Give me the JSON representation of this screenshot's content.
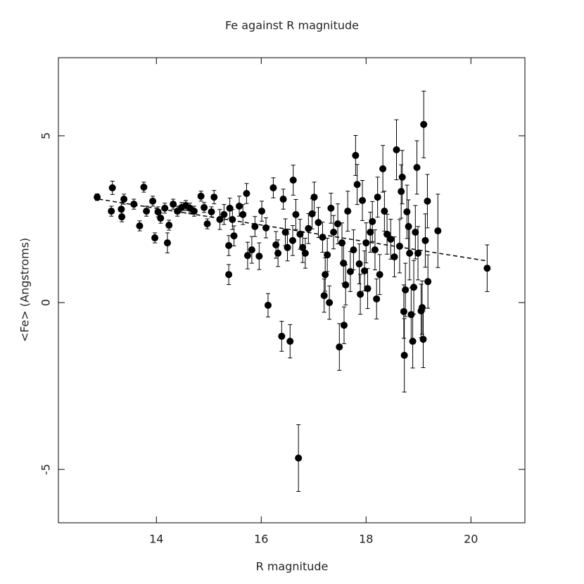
{
  "chart_data": {
    "type": "scatter",
    "title": "Fe against R magnitude",
    "x_label": "R magnitude",
    "y_label": "<Fe> (Angstroms)",
    "xlim": [
      12.13,
      21.03
    ],
    "ylim": [
      -6.6,
      7.34
    ],
    "xticks": [
      14,
      16,
      18,
      20
    ],
    "yticks": [
      -5,
      0,
      5
    ],
    "fit": {
      "x": [
        12.9,
        20.3
      ],
      "y": [
        3.1,
        1.25
      ]
    },
    "series": [
      {
        "color": "#000000",
        "x": [
          12.87,
          13.14,
          13.16,
          13.33,
          13.34,
          13.38,
          13.57,
          13.68,
          13.76,
          13.81,
          13.93,
          13.97,
          14.03,
          14.08,
          14.16,
          14.21,
          14.24,
          14.32,
          14.4,
          14.48,
          14.56,
          14.64,
          14.72,
          14.85,
          14.91,
          14.97,
          15.05,
          15.1,
          15.21,
          15.29,
          15.4,
          15.45,
          15.38,
          15.38,
          15.48,
          15.58,
          15.65,
          15.72,
          15.74,
          15.82,
          15.88,
          15.96,
          16.01,
          16.09,
          16.13,
          16.23,
          16.28,
          16.32,
          16.39,
          16.42,
          16.46,
          16.5,
          16.55,
          16.6,
          16.61,
          16.66,
          16.71,
          16.74,
          16.79,
          16.84,
          16.9,
          16.97,
          17.01,
          17.09,
          17.17,
          17.2,
          17.22,
          17.26,
          17.3,
          17.33,
          17.38,
          17.46,
          17.49,
          17.54,
          17.57,
          17.58,
          17.61,
          17.65,
          17.7,
          17.76,
          17.8,
          17.83,
          17.87,
          17.89,
          17.93,
          17.97,
          18.0,
          18.03,
          18.08,
          18.12,
          18.17,
          18.2,
          18.22,
          18.26,
          18.32,
          18.35,
          18.4,
          18.47,
          18.54,
          18.58,
          18.64,
          18.67,
          18.69,
          18.72,
          18.73,
          18.75,
          18.78,
          18.81,
          18.83,
          18.86,
          18.89,
          18.91,
          18.94,
          18.97,
          18.99,
          19.05,
          19.07,
          19.09,
          19.1,
          19.13,
          19.17,
          19.18,
          19.37,
          20.31
        ],
        "values": [
          3.16,
          2.74,
          3.44,
          2.8,
          2.57,
          3.1,
          2.95,
          2.3,
          3.46,
          2.74,
          3.04,
          1.94,
          2.72,
          2.53,
          2.83,
          1.79,
          2.32,
          2.95,
          2.74,
          2.85,
          2.91,
          2.83,
          2.74,
          3.19,
          2.85,
          2.36,
          2.72,
          3.16,
          2.49,
          2.64,
          2.83,
          2.49,
          1.71,
          0.84,
          2.0,
          2.89,
          2.64,
          3.27,
          1.41,
          1.58,
          2.28,
          1.39,
          2.74,
          2.24,
          -0.08,
          3.44,
          1.73,
          1.48,
          -1.01,
          3.1,
          2.11,
          1.65,
          -1.16,
          1.86,
          3.67,
          2.64,
          -4.66,
          2.05,
          1.65,
          1.48,
          2.22,
          2.66,
          3.16,
          2.4,
          1.96,
          0.21,
          0.84,
          1.43,
          0.0,
          2.83,
          2.11,
          2.36,
          -1.33,
          1.79,
          1.18,
          -0.68,
          0.53,
          2.74,
          0.93,
          1.58,
          4.41,
          3.54,
          1.16,
          0.25,
          3.06,
          0.95,
          1.79,
          0.42,
          2.11,
          2.43,
          1.58,
          0.11,
          3.16,
          0.84,
          4.01,
          2.74,
          2.05,
          1.9,
          1.37,
          4.58,
          1.69,
          3.33,
          3.76,
          -0.27,
          -1.58,
          0.38,
          2.72,
          2.28,
          1.48,
          -0.36,
          -1.16,
          0.46,
          2.11,
          4.05,
          1.48,
          -0.25,
          -0.15,
          -1.1,
          5.34,
          1.86,
          3.04,
          0.63,
          2.15,
          1.03
        ],
        "errors": [
          0.1,
          0.15,
          0.2,
          0.2,
          0.15,
          0.15,
          0.15,
          0.15,
          0.15,
          0.15,
          0.15,
          0.15,
          0.15,
          0.15,
          0.15,
          0.3,
          0.15,
          0.15,
          0.15,
          0.15,
          0.15,
          0.15,
          0.15,
          0.15,
          0.15,
          0.15,
          0.15,
          0.2,
          0.3,
          0.3,
          0.3,
          0.3,
          0.3,
          0.3,
          0.3,
          0.3,
          0.3,
          0.3,
          0.4,
          0.4,
          0.3,
          0.4,
          0.3,
          0.3,
          0.35,
          0.3,
          0.4,
          0.4,
          0.45,
          0.3,
          0.4,
          0.4,
          0.5,
          0.45,
          0.45,
          0.45,
          1.0,
          0.45,
          0.45,
          0.45,
          0.45,
          0.45,
          0.45,
          0.45,
          0.45,
          0.5,
          0.5,
          0.5,
          0.5,
          0.45,
          0.5,
          0.6,
          0.7,
          0.6,
          0.6,
          0.55,
          0.6,
          0.6,
          0.6,
          0.6,
          0.6,
          0.6,
          0.6,
          0.6,
          0.6,
          0.6,
          0.6,
          0.6,
          0.6,
          0.6,
          0.6,
          0.6,
          0.6,
          0.6,
          0.7,
          0.6,
          0.6,
          0.6,
          0.6,
          0.9,
          0.8,
          0.8,
          0.8,
          0.8,
          1.1,
          0.8,
          0.8,
          0.8,
          0.8,
          0.8,
          0.8,
          0.8,
          0.8,
          0.8,
          0.8,
          0.8,
          0.8,
          0.85,
          1.0,
          0.8,
          0.8,
          0.8,
          1.1,
          0.7
        ]
      }
    ]
  }
}
